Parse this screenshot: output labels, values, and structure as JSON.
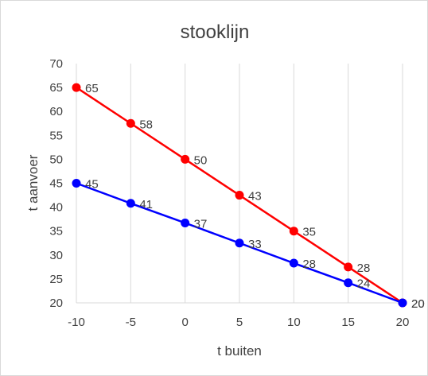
{
  "chart_data": {
    "type": "line",
    "title": "stooklijn",
    "xlabel": "t buiten",
    "ylabel": "t aanvoer",
    "xlim": [
      -10,
      20
    ],
    "ylim": [
      20,
      70
    ],
    "xticks": [
      "-10",
      "-5",
      "0",
      "5",
      "10",
      "15",
      "20"
    ],
    "yticks": [
      "20",
      "25",
      "30",
      "35",
      "40",
      "45",
      "50",
      "55",
      "60",
      "65",
      "70"
    ],
    "grid": "vertical",
    "legend": "none",
    "x": [
      -10,
      -5,
      0,
      5,
      10,
      15,
      20
    ],
    "series": [
      {
        "color": "#ff0000",
        "values": [
          65,
          57.5,
          50,
          42.5,
          35,
          27.5,
          20
        ],
        "labels": [
          "65",
          "58",
          "50",
          "43",
          "35",
          "28",
          "20"
        ]
      },
      {
        "color": "#0000ff",
        "values": [
          45,
          40.8,
          36.7,
          32.5,
          28.3,
          24.2,
          20
        ],
        "labels": [
          "45",
          "41",
          "37",
          "33",
          "28",
          "24",
          "20"
        ]
      }
    ]
  }
}
